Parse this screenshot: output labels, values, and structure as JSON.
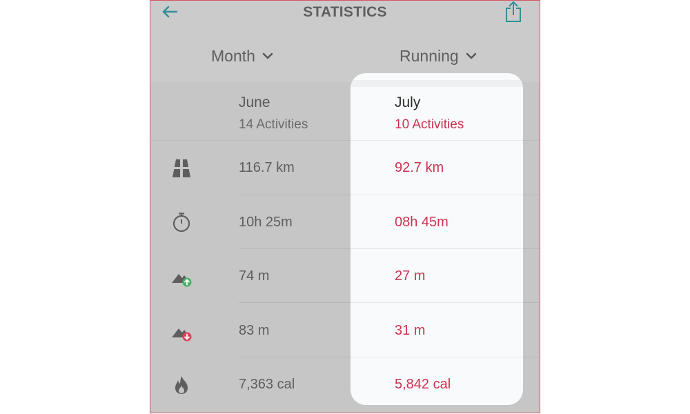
{
  "header": {
    "title": "STATISTICS",
    "period_selector": "Month",
    "sport_selector": "Running"
  },
  "columns": {
    "previous": {
      "label": "June",
      "activities": "14 Activities"
    },
    "current": {
      "label": "July",
      "activities": "10 Activities"
    }
  },
  "metrics": [
    {
      "icon": "road-distance-icon",
      "june": "116.7 km",
      "july": "92.7 km"
    },
    {
      "icon": "stopwatch-icon",
      "june": "10h 25m",
      "july": "08h 45m"
    },
    {
      "icon": "elevation-gain-icon",
      "june": "74 m",
      "july": "27 m"
    },
    {
      "icon": "elevation-loss-icon",
      "june": "83 m",
      "july": "31 m"
    },
    {
      "icon": "calories-flame-icon",
      "june": "7,363 cal",
      "july": "5,842 cal"
    }
  ],
  "colors": {
    "accent_teal": "#2f8f98",
    "highlight_red": "#c9334f",
    "gain_green": "#4caf6a",
    "loss_red": "#d9445c"
  }
}
